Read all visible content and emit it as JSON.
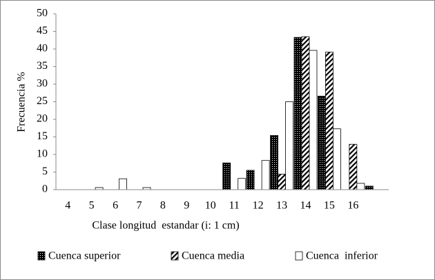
{
  "chart_data": {
    "type": "bar",
    "categories": [
      "4",
      "5",
      "6",
      "7",
      "8",
      "9",
      "10",
      "11",
      "12",
      "13",
      "14",
      "15",
      "16",
      null
    ],
    "series": [
      {
        "name": "Cuenca superior",
        "color": "#000000",
        "pattern": "dots",
        "values": [
          0,
          0,
          0,
          0,
          0,
          0,
          0,
          7.6,
          5.5,
          15.4,
          43.3,
          26.6,
          0,
          1.0
        ]
      },
      {
        "name": "Cuenca media",
        "color": "#000000",
        "pattern": "diagonal",
        "values": [
          0,
          0,
          0,
          0,
          0,
          0,
          0,
          0,
          0,
          4.4,
          43.5,
          39.1,
          12.9,
          0
        ]
      },
      {
        "name": "Cuenca  inferior",
        "color": "#000000",
        "pattern": "none",
        "values": [
          0,
          0.6,
          3.1,
          0.6,
          0,
          0,
          0,
          3.2,
          8.3,
          25.0,
          39.6,
          17.3,
          1.8,
          0
        ]
      }
    ],
    "x_label": "Clase longitud  estandar (i: 1 cm)",
    "y_label": "Frecuencia %",
    "ylim": [
      0,
      50
    ],
    "yticks": [
      0,
      5,
      10,
      15,
      20,
      25,
      30,
      35,
      40,
      45,
      50
    ],
    "grid": false,
    "legend": "bottom"
  }
}
